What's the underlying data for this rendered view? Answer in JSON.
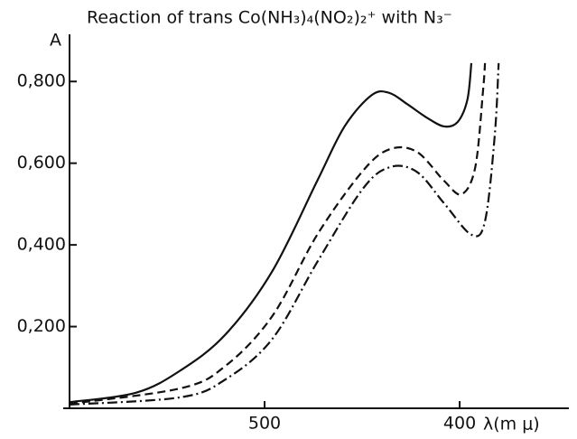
{
  "chart_data": {
    "type": "line",
    "title": "Reaction of trans Co(NH₃)₄(NO₂)₂⁺ with N₃⁻",
    "ylabel": "A",
    "xlabel": "λ(m μ)",
    "xlim": [
      600,
      344
    ],
    "xticks": [
      500,
      400
    ],
    "ylim": [
      0,
      0.9
    ],
    "yticks": [
      {
        "value": 0.2,
        "label": "0,200"
      },
      {
        "value": 0.4,
        "label": "0,400"
      },
      {
        "value": 0.6,
        "label": "0,600"
      },
      {
        "value": 0.8,
        "label": "0,800"
      }
    ],
    "series": [
      {
        "style": "solid",
        "color": "#111111",
        "x": [
          600,
          566,
          543,
          520,
          496,
          473,
          459,
          445,
          436,
          427,
          417,
          408,
          401,
          396,
          394
        ],
        "values": [
          0.015,
          0.038,
          0.093,
          0.181,
          0.336,
          0.557,
          0.69,
          0.767,
          0.772,
          0.745,
          0.712,
          0.69,
          0.701,
          0.756,
          0.845
        ]
      },
      {
        "style": "dashed",
        "color": "#111111",
        "x": [
          600,
          543,
          520,
          496,
          473,
          450,
          436,
          422,
          408,
          399,
          392,
          388,
          387
        ],
        "values": [
          0.011,
          0.049,
          0.104,
          0.226,
          0.425,
          0.579,
          0.634,
          0.628,
          0.557,
          0.524,
          0.59,
          0.778,
          0.845
        ]
      },
      {
        "style": "dashdot",
        "color": "#111111",
        "x": [
          600,
          543,
          520,
          496,
          473,
          450,
          436,
          422,
          408,
          394,
          387,
          382,
          380
        ],
        "values": [
          0.009,
          0.027,
          0.071,
          0.17,
          0.358,
          0.535,
          0.59,
          0.579,
          0.502,
          0.425,
          0.458,
          0.668,
          0.845
        ]
      }
    ]
  }
}
